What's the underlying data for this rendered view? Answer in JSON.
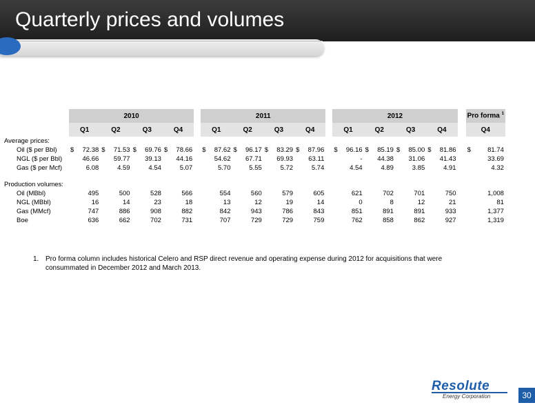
{
  "slide": {
    "title": "Quarterly prices and volumes",
    "page_number": "30"
  },
  "table": {
    "year_headers": [
      "2010",
      "2011",
      "2012",
      "Pro forma"
    ],
    "proforma_sup": "1",
    "quarter_headers": [
      "Q1",
      "Q2",
      "Q3",
      "Q4",
      "Q1",
      "Q2",
      "Q3",
      "Q4",
      "Q1",
      "Q2",
      "Q3",
      "Q4",
      "Q4"
    ],
    "sections": [
      {
        "heading": "Average prices:",
        "rows": [
          {
            "label": "Oil ($ per Bbl)",
            "dollar": true,
            "values": [
              "72.38",
              "71.53",
              "69.76",
              "78.66",
              "87.62",
              "96.17",
              "83.29",
              "87.96",
              "96.16",
              "85.19",
              "85.00",
              "81.86",
              "81.74"
            ]
          },
          {
            "label": "NGL ($ per Bbl)",
            "dollar": false,
            "values": [
              "46.66",
              "59.77",
              "39.13",
              "44.16",
              "54.62",
              "67.71",
              "69.93",
              "63.11",
              "-",
              "44.38",
              "31.06",
              "41.43",
              "33.69"
            ]
          },
          {
            "label": "Gas ($ per Mcf)",
            "dollar": false,
            "values": [
              "6.08",
              "4.59",
              "4.54",
              "5.07",
              "5.70",
              "5.55",
              "5.72",
              "5.74",
              "4.54",
              "4.89",
              "3.85",
              "4.91",
              "4.32"
            ]
          }
        ]
      },
      {
        "heading": "Production volumes:",
        "rows": [
          {
            "label": "Oil (MBbl)",
            "dollar": false,
            "values": [
              "495",
              "500",
              "528",
              "566",
              "554",
              "560",
              "579",
              "605",
              "621",
              "702",
              "701",
              "750",
              "1,008"
            ]
          },
          {
            "label": "NGL (MBbl)",
            "dollar": false,
            "values": [
              "16",
              "14",
              "23",
              "18",
              "13",
              "12",
              "19",
              "14",
              "0",
              "8",
              "12",
              "21",
              "81"
            ]
          },
          {
            "label": "Gas (MMcf)",
            "dollar": false,
            "values": [
              "747",
              "886",
              "908",
              "882",
              "842",
              "943",
              "786",
              "843",
              "851",
              "891",
              "891",
              "933",
              "1,377"
            ]
          },
          {
            "label": "Boe",
            "dollar": false,
            "values": [
              "636",
              "662",
              "702",
              "731",
              "707",
              "729",
              "729",
              "759",
              "762",
              "858",
              "862",
              "927",
              "1,319"
            ]
          }
        ]
      }
    ],
    "dollar_sign": "$"
  },
  "footnote": {
    "number": "1.",
    "text": "Pro forma column includes historical Celero and RSP direct revenue and operating expense during 2012 for acquisitions that were consummated in December 2012 and March 2013."
  },
  "logo": {
    "name": "Resolute",
    "subtitle": "Energy Corporation"
  },
  "colors": {
    "header_bg": "#2a2a2a",
    "accent": "#1e5ea8",
    "year_header_bg": "#cfcfcf",
    "quarter_header_bg": "#e3e3e3"
  }
}
